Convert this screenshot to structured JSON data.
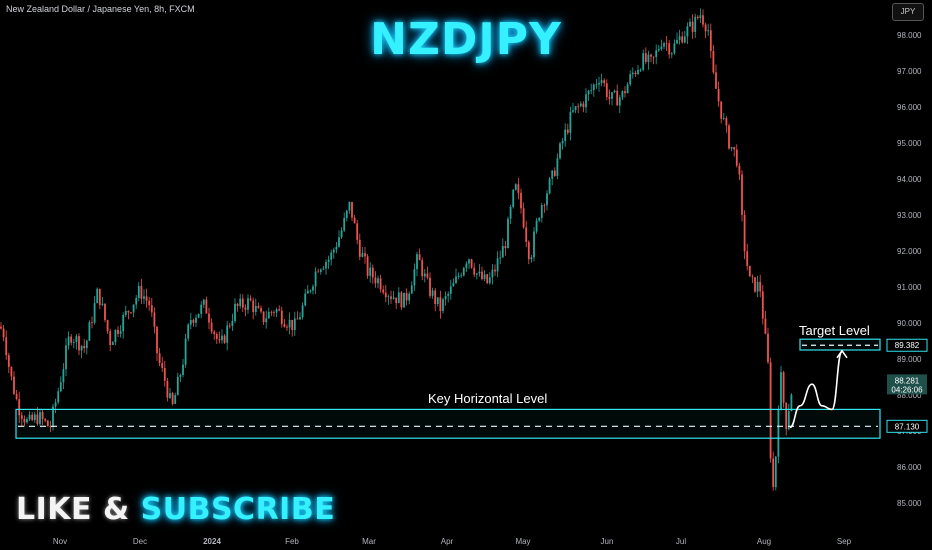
{
  "header": {
    "symbol_description": "New Zealand Dollar / Japanese Yen, 8h, FXCM",
    "title": "NZDJPY",
    "currency_chip": "JPY"
  },
  "overlay": {
    "like": "LIKE",
    "amp": "&",
    "subscribe": "SUBSCRIBE"
  },
  "annotations": {
    "key_level_label": "Key Horizontal Level",
    "target_level_label": "Target Level"
  },
  "chart_data": {
    "type": "candlestick",
    "title": "NZDJPY",
    "ylim": [
      84.6,
      98.8
    ],
    "y_ticks": [
      85.0,
      86.0,
      87.0,
      88.0,
      89.0,
      90.0,
      91.0,
      92.0,
      93.0,
      94.0,
      95.0,
      96.0,
      97.0,
      98.0
    ],
    "y_tick_labels": [
      "85.000",
      "86.000",
      "87.000",
      "88.000",
      "89.000",
      "90.000",
      "91.000",
      "92.000",
      "93.000",
      "94.000",
      "95.000",
      "96.000",
      "97.000",
      "98.000"
    ],
    "x_tick_labels": [
      "Nov",
      "Dec",
      "2024",
      "Feb",
      "Mar",
      "Apr",
      "May",
      "Jun",
      "Jul",
      "Aug",
      "Sep"
    ],
    "x_tick_bold": [
      false,
      false,
      true,
      false,
      false,
      false,
      false,
      false,
      false,
      false,
      false
    ],
    "x_tick_positions": [
      60,
      140,
      212,
      292,
      369,
      447,
      523,
      607,
      681,
      764,
      844
    ],
    "price_anchors": [
      [
        0,
        89.9
      ],
      [
        4,
        89.7
      ],
      [
        10,
        88.6
      ],
      [
        18,
        87.7
      ],
      [
        28,
        87.2
      ],
      [
        38,
        87.4
      ],
      [
        50,
        87.1
      ],
      [
        58,
        88.1
      ],
      [
        70,
        89.7
      ],
      [
        85,
        89.3
      ],
      [
        98,
        90.9
      ],
      [
        110,
        89.5
      ],
      [
        125,
        90.2
      ],
      [
        140,
        90.9
      ],
      [
        150,
        90.5
      ],
      [
        158,
        89.0
      ],
      [
        165,
        88.4
      ],
      [
        172,
        87.6
      ],
      [
        182,
        88.8
      ],
      [
        190,
        90.1
      ],
      [
        205,
        90.5
      ],
      [
        220,
        89.3
      ],
      [
        235,
        90.4
      ],
      [
        250,
        90.6
      ],
      [
        262,
        90.1
      ],
      [
        275,
        90.4
      ],
      [
        285,
        90.1
      ],
      [
        295,
        89.9
      ],
      [
        305,
        90.6
      ],
      [
        318,
        91.6
      ],
      [
        330,
        91.8
      ],
      [
        342,
        92.6
      ],
      [
        350,
        93.3
      ],
      [
        358,
        92.2
      ],
      [
        368,
        91.4
      ],
      [
        378,
        91.2
      ],
      [
        390,
        90.8
      ],
      [
        405,
        90.6
      ],
      [
        418,
        91.8
      ],
      [
        428,
        91.0
      ],
      [
        440,
        90.4
      ],
      [
        455,
        91.1
      ],
      [
        468,
        91.9
      ],
      [
        478,
        91.3
      ],
      [
        488,
        91.1
      ],
      [
        495,
        91.5
      ],
      [
        505,
        92.2
      ],
      [
        515,
        93.8
      ],
      [
        522,
        93.1
      ],
      [
        530,
        91.8
      ],
      [
        540,
        93.2
      ],
      [
        552,
        94.0
      ],
      [
        562,
        95.0
      ],
      [
        572,
        95.8
      ],
      [
        582,
        96.1
      ],
      [
        592,
        96.5
      ],
      [
        600,
        96.9
      ],
      [
        610,
        96.2
      ],
      [
        622,
        96.3
      ],
      [
        632,
        96.9
      ],
      [
        642,
        97.3
      ],
      [
        652,
        97.2
      ],
      [
        662,
        97.9
      ],
      [
        672,
        97.6
      ],
      [
        682,
        98.0
      ],
      [
        694,
        98.3
      ],
      [
        700,
        98.6
      ],
      [
        708,
        98.2
      ],
      [
        712,
        97.0
      ],
      [
        720,
        96.0
      ],
      [
        728,
        95.1
      ],
      [
        738,
        94.5
      ],
      [
        743,
        92.4
      ],
      [
        750,
        91.1
      ],
      [
        760,
        91.0
      ],
      [
        768,
        88.8
      ],
      [
        772,
        85.1
      ],
      [
        775,
        85.9
      ],
      [
        780,
        88.7
      ],
      [
        786,
        87.2
      ],
      [
        792,
        88.2
      ]
    ],
    "last_price_label": "88.281",
    "countdown_label": "04:26:06",
    "key_level": {
      "price": 87.13,
      "label": "87.130",
      "zone_low": 86.8,
      "zone_high": 87.6
    },
    "target_level": {
      "price": 89.382,
      "label": "89.382",
      "zone_low": 89.25,
      "zone_high": 89.55
    },
    "projection_path": [
      [
        790,
        87.1
      ],
      [
        800,
        87.7
      ],
      [
        812,
        88.3
      ],
      [
        822,
        87.7
      ],
      [
        832,
        87.6
      ],
      [
        842,
        89.2
      ]
    ],
    "colors": {
      "up": "#26a69a",
      "down": "#ef5350",
      "zone": "#32e4f0",
      "level_dash": "#e6fbff",
      "axis_text": "#b2b5be",
      "price_chip_bg": "#1f4f4a",
      "price_chip_text": "#ffffff"
    }
  }
}
